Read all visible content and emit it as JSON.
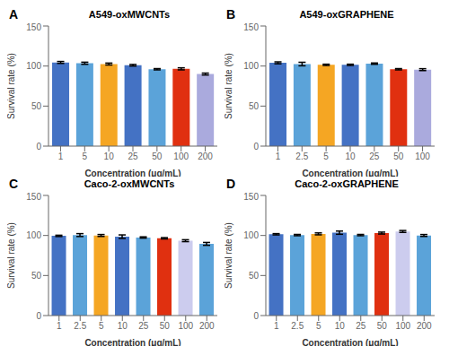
{
  "chart_data": [
    {
      "type": "bar",
      "panel_label": "A",
      "title": "A549-oxMWCNTs",
      "categories": [
        "1",
        "5",
        "10",
        "25",
        "50",
        "100",
        "200"
      ],
      "values": [
        104.5,
        103.5,
        102.5,
        101.0,
        96.0,
        96.5,
        90.0
      ],
      "errors": [
        1.2,
        1.3,
        1.2,
        1.0,
        0.8,
        1.3,
        1.2
      ],
      "colors": [
        "#4472C4",
        "#5BA3D9",
        "#F5A623",
        "#4472C4",
        "#5BA3D9",
        "#E03010",
        "#AAAADD"
      ],
      "xlabel": "Concentration (μg/mL)",
      "ylabel": "Survival rate (%)",
      "ylim": [
        0,
        150
      ],
      "yticks": [
        0,
        50,
        100,
        150
      ]
    },
    {
      "type": "bar",
      "panel_label": "B",
      "title": "A549-oxGRAPHENE",
      "categories": [
        "1",
        "2.5",
        "5",
        "10",
        "25",
        "50",
        "100"
      ],
      "values": [
        104.0,
        102.5,
        101.5,
        101.5,
        103.0,
        96.0,
        95.5
      ],
      "errors": [
        1.2,
        2.2,
        0.8,
        0.8,
        0.8,
        0.8,
        1.2
      ],
      "colors": [
        "#4472C4",
        "#5BA3D9",
        "#F5A623",
        "#4472C4",
        "#5BA3D9",
        "#E03010",
        "#AAAADD"
      ],
      "xlabel": "Concentration (μg/mL)",
      "ylabel": "Survival rate (%)",
      "ylim": [
        0,
        150
      ],
      "yticks": [
        0,
        50,
        100,
        150
      ]
    },
    {
      "type": "bar",
      "panel_label": "C",
      "title": "Caco-2-oxMWCNTs",
      "categories": [
        "1",
        "2.5",
        "5",
        "10",
        "25",
        "50",
        "100",
        "200"
      ],
      "values": [
        99.5,
        100.5,
        100.0,
        98.5,
        97.5,
        96.5,
        93.5,
        89.5
      ],
      "errors": [
        0.8,
        1.8,
        1.2,
        2.2,
        0.8,
        0.8,
        1.2,
        1.8
      ],
      "colors": [
        "#4472C4",
        "#5BA3D9",
        "#F5A623",
        "#4472C4",
        "#5BA3D9",
        "#E03010",
        "#CCCCEE",
        "#5BA3D9"
      ],
      "xlabel": "Concentration (μg/mL)",
      "ylabel": "Survival rate (%)",
      "ylim": [
        0,
        150
      ],
      "yticks": [
        0,
        50,
        100,
        150
      ]
    },
    {
      "type": "bar",
      "panel_label": "D",
      "title": "Caco-2-oxGRAPHENE",
      "categories": [
        "1",
        "2.5",
        "5",
        "10",
        "25",
        "50",
        "100",
        "200"
      ],
      "values": [
        101.5,
        100.5,
        102.0,
        103.5,
        100.5,
        103.0,
        105.0,
        100.0
      ],
      "errors": [
        0.8,
        0.8,
        1.2,
        2.0,
        0.8,
        1.2,
        1.2,
        1.2
      ],
      "colors": [
        "#4472C4",
        "#5BA3D9",
        "#F5A623",
        "#4472C4",
        "#5BA3D9",
        "#E03010",
        "#CCCCEE",
        "#5BA3D9"
      ],
      "xlabel": "Concentration (μg/mL)",
      "ylabel": "Survival rate (%)",
      "ylim": [
        0,
        150
      ],
      "yticks": [
        0,
        50,
        100,
        150
      ]
    }
  ]
}
